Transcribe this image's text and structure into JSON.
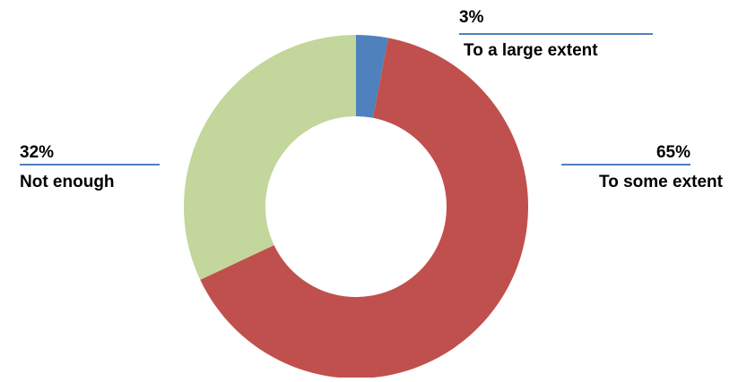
{
  "chart_data": {
    "type": "pie",
    "donut": true,
    "title": "",
    "categories": [
      "To a large extent",
      "To some extent",
      "Not enough"
    ],
    "values": [
      3,
      65,
      32
    ],
    "value_labels": [
      "3%",
      "65%",
      "32%"
    ],
    "colors": [
      "#4F81BD",
      "#C0504D",
      "#C3D69B"
    ],
    "leader_line_color": "#4F81BD",
    "legend": "none"
  }
}
